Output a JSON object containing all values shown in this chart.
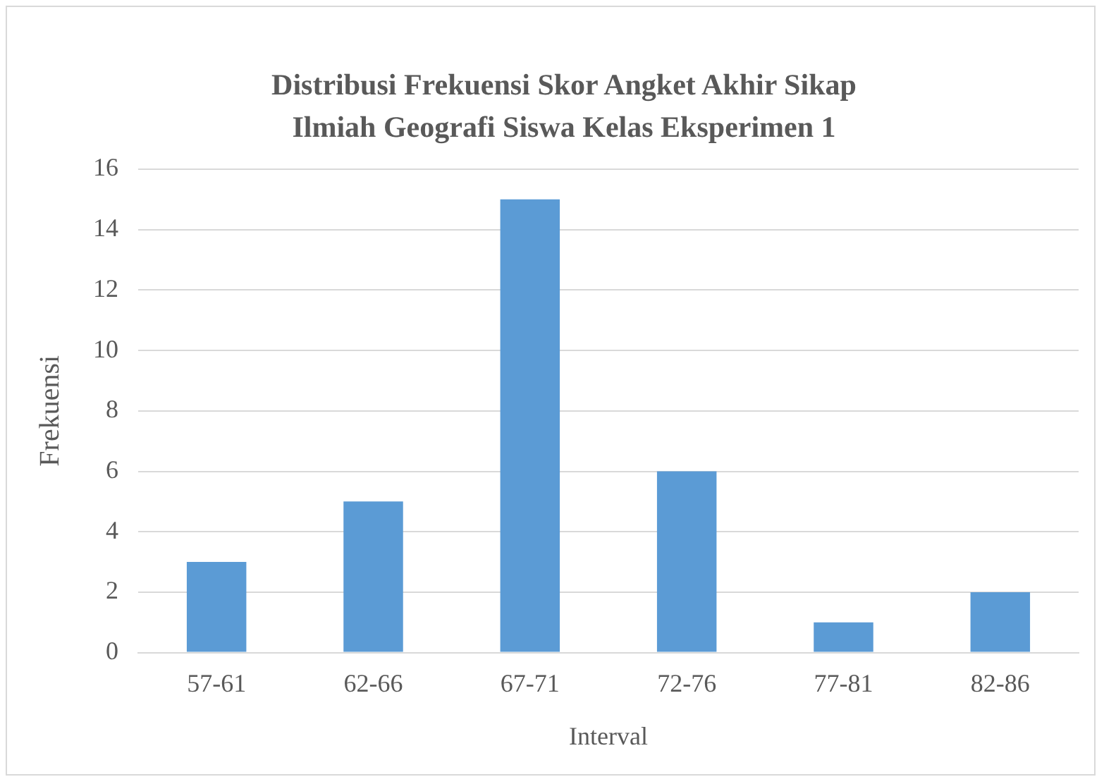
{
  "chart_data": {
    "type": "bar",
    "title": "Distribusi Frekuensi Skor Angket Akhir Sikap Ilmiah Geografi Siswa Kelas Eksperimen 1",
    "xlabel": "Interval",
    "ylabel": "Frekuensi",
    "categories": [
      "57-61",
      "62-66",
      "67-71",
      "72-76",
      "77-81",
      "82-86"
    ],
    "values": [
      3,
      5,
      15,
      6,
      1,
      2
    ],
    "color": "#5b9bd5",
    "ylim": [
      0,
      16
    ],
    "yticks": [
      0,
      2,
      4,
      6,
      8,
      10,
      12,
      14,
      16
    ],
    "grid": "y",
    "legend": false
  }
}
